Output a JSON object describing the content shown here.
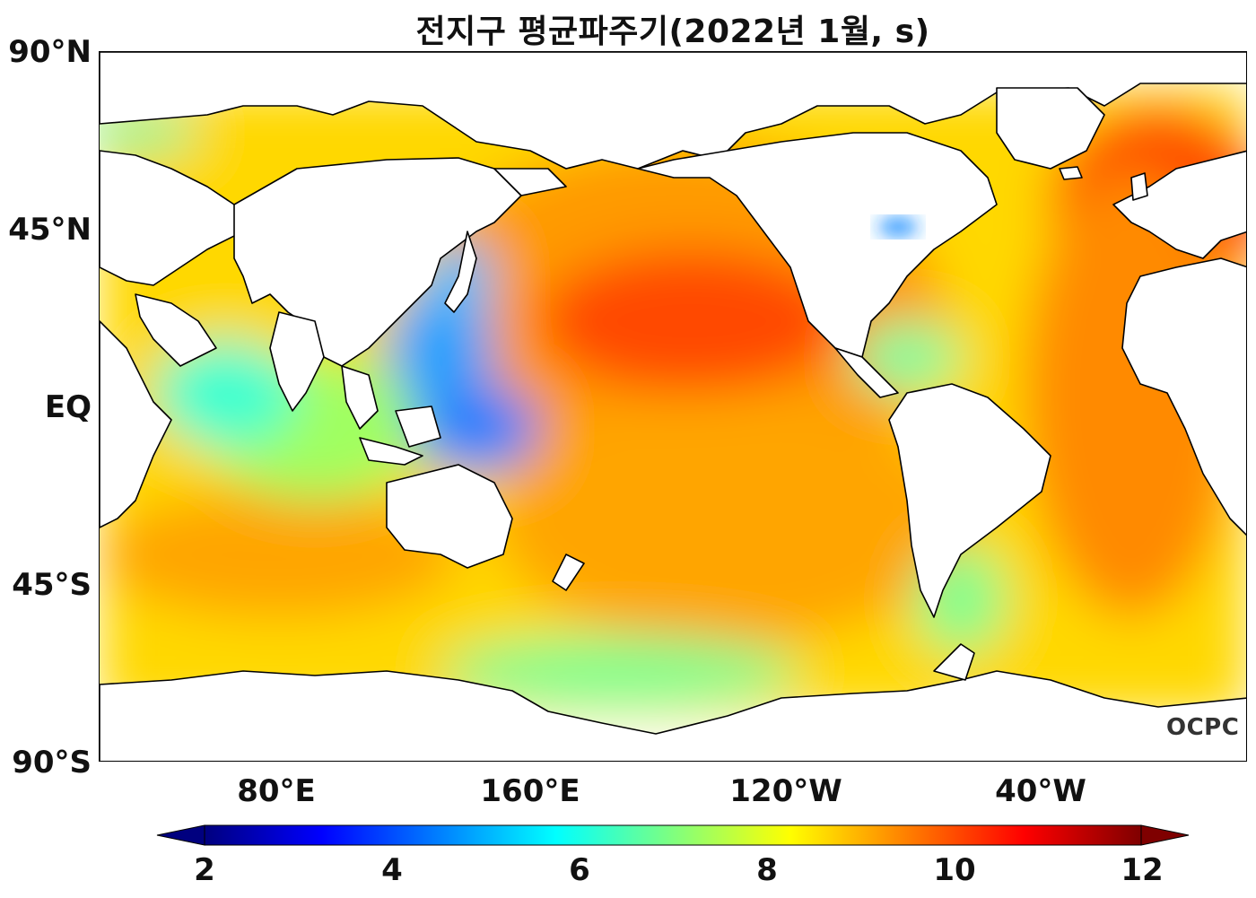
{
  "title": "전지구 평균파주기(2022년 1월, s)",
  "lat_labels": [
    "90°N",
    "45°N",
    "EQ",
    "45°S",
    "90°S"
  ],
  "lon_labels": [
    "80°E",
    "160°E",
    "120°W",
    "40°W"
  ],
  "colorbar": {
    "ticks": [
      "2",
      "4",
      "6",
      "8",
      "10",
      "12"
    ],
    "min": 2,
    "max": 12,
    "extend": "both",
    "colormap": "jet",
    "colors": [
      "#00007f",
      "#0000ff",
      "#007fff",
      "#00ffff",
      "#7fff7f",
      "#ffff00",
      "#ff7f00",
      "#ff0000",
      "#7f0000"
    ]
  },
  "watermark": "OCPC",
  "colors": {
    "land": "#ffffff",
    "coastline": "#000000"
  }
}
